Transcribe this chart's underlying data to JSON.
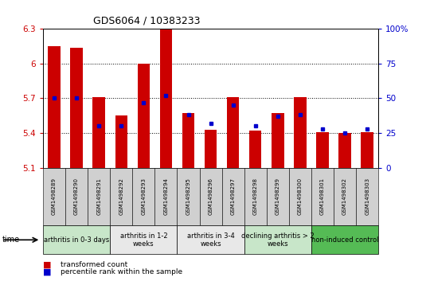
{
  "title": "GDS6064 / 10383233",
  "samples": [
    "GSM1498289",
    "GSM1498290",
    "GSM1498291",
    "GSM1498292",
    "GSM1498293",
    "GSM1498294",
    "GSM1498295",
    "GSM1498296",
    "GSM1498297",
    "GSM1498298",
    "GSM1498299",
    "GSM1498300",
    "GSM1498301",
    "GSM1498302",
    "GSM1498303"
  ],
  "red_values": [
    6.15,
    6.14,
    5.71,
    5.55,
    6.0,
    6.3,
    5.57,
    5.43,
    5.71,
    5.42,
    5.57,
    5.71,
    5.41,
    5.4,
    5.41
  ],
  "blue_values_pct": [
    50,
    50,
    30,
    30,
    47,
    52,
    38,
    32,
    45,
    30,
    37,
    38,
    28,
    25,
    28
  ],
  "ymin": 5.1,
  "ymax": 6.3,
  "yticks": [
    5.1,
    5.4,
    5.7,
    6.0,
    6.3
  ],
  "ytick_labels_left": [
    "5.1",
    "5.4",
    "5.7",
    "6",
    "6.3"
  ],
  "ytick_labels_right": [
    "0",
    "25",
    "50",
    "75",
    "100%"
  ],
  "dotted_lines": [
    5.4,
    5.7,
    6.0
  ],
  "groups": [
    {
      "label": "arthritis in 0-3 days",
      "start": 0,
      "end": 3,
      "color": "#c8e6c9"
    },
    {
      "label": "arthritis in 1-2\nweeks",
      "start": 3,
      "end": 6,
      "color": "#e8e8e8"
    },
    {
      "label": "arthritis in 3-4\nweeks",
      "start": 6,
      "end": 9,
      "color": "#e8e8e8"
    },
    {
      "label": "declining arthritis > 2\nweeks",
      "start": 9,
      "end": 12,
      "color": "#c8e6c9"
    },
    {
      "label": "non-induced control",
      "start": 12,
      "end": 15,
      "color": "#55bb55"
    }
  ],
  "bar_color": "#cc0000",
  "blue_color": "#0000cc",
  "sample_bg_color": "#d0d0d0",
  "legend_red": "transformed count",
  "legend_blue": "percentile rank within the sample"
}
